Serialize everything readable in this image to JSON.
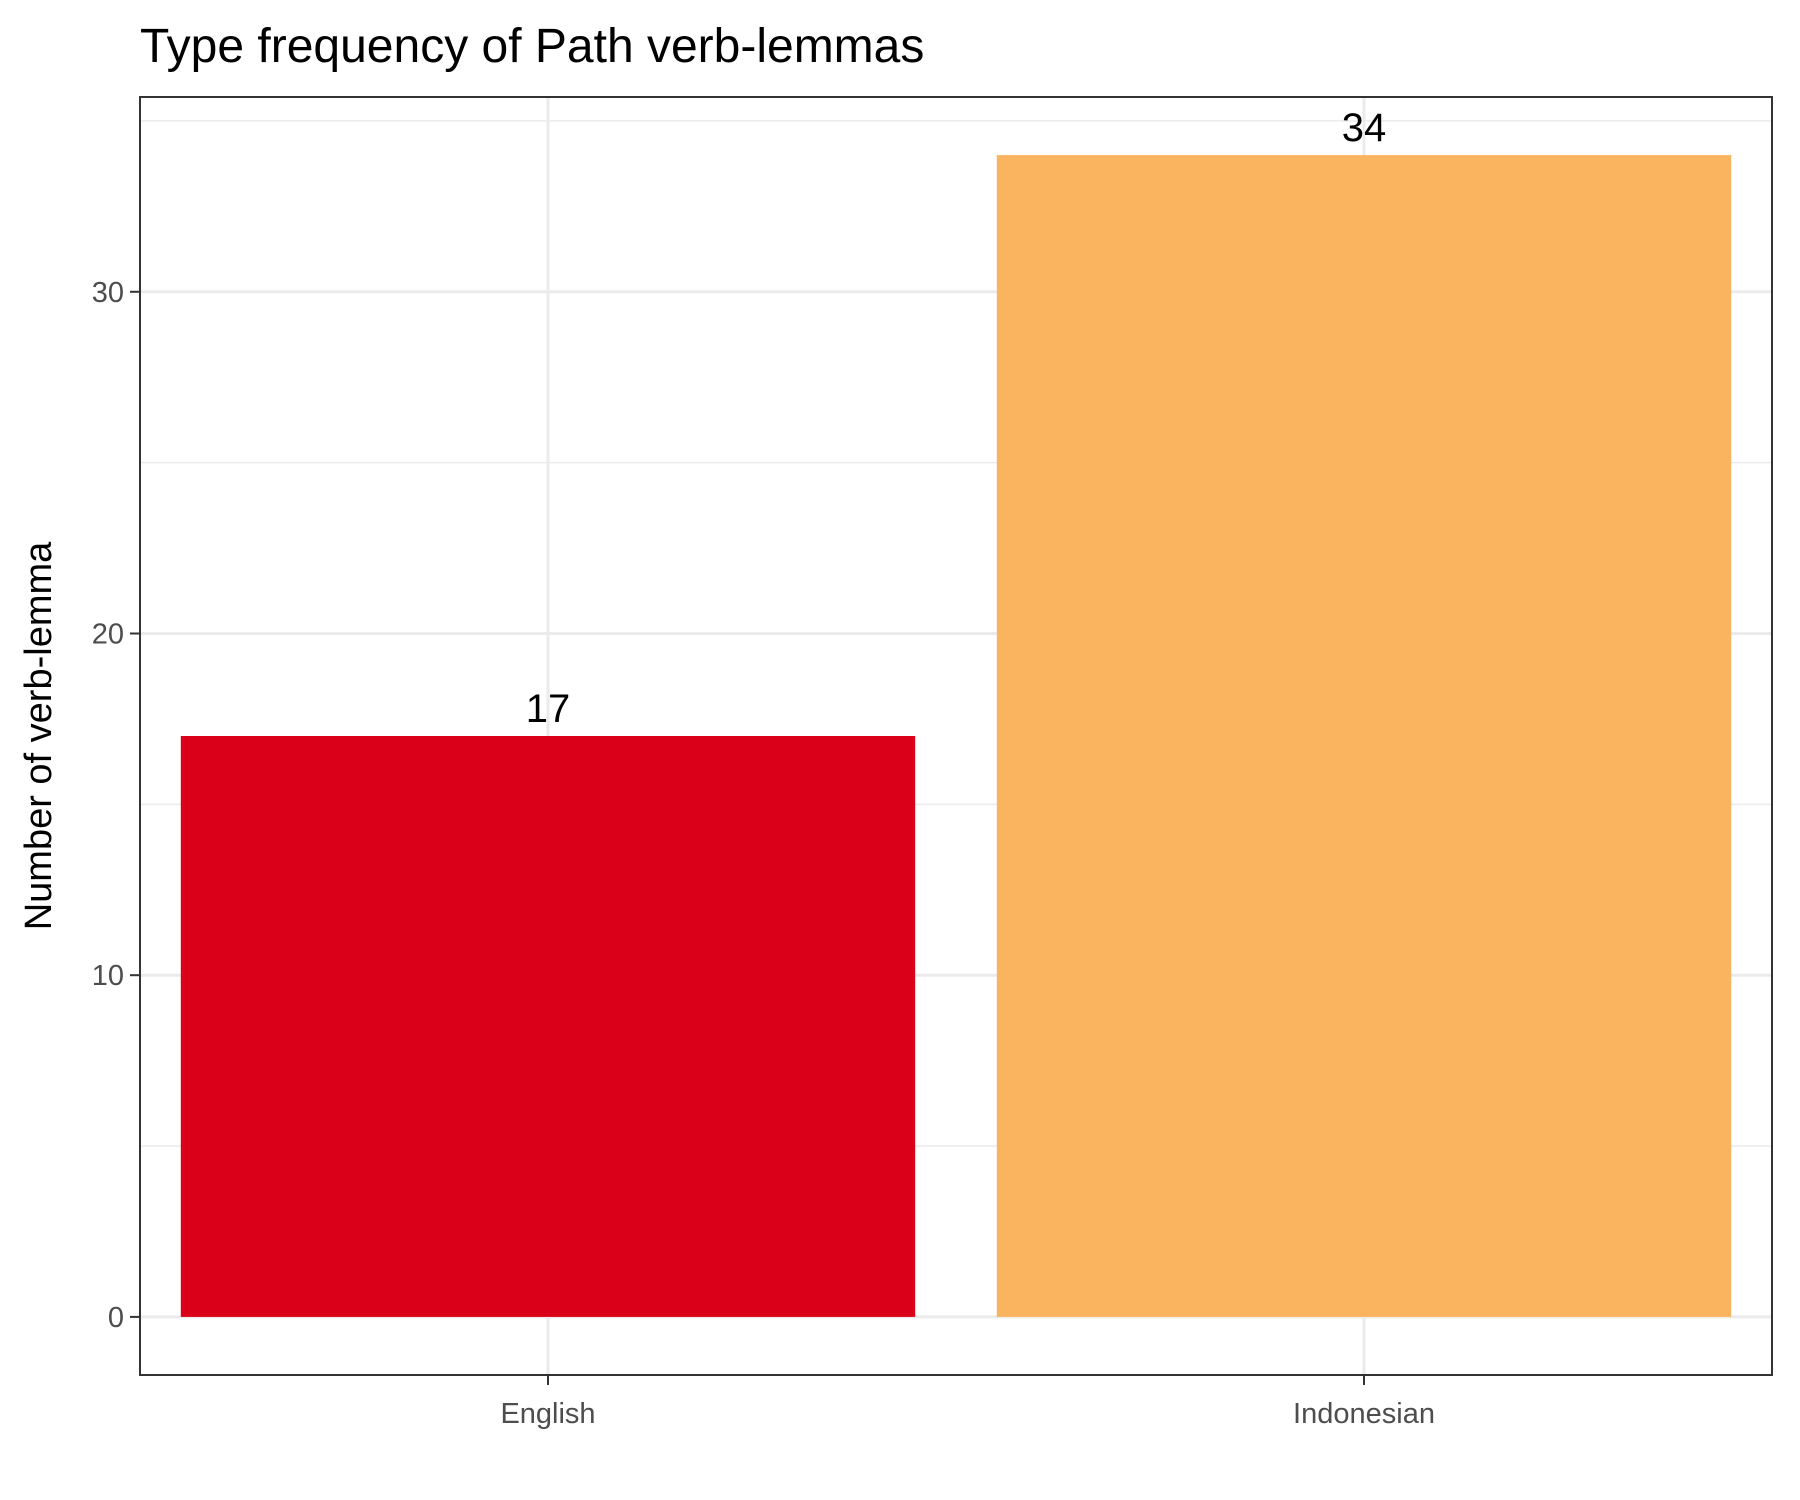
{
  "chart_data": {
    "type": "bar",
    "title": "Type frequency of Path verb-lemmas",
    "xlabel": "",
    "ylabel": "Number of verb-lemma",
    "categories": [
      "English",
      "Indonesian"
    ],
    "values": [
      17,
      34
    ],
    "data_labels": [
      "17",
      "34"
    ],
    "colors": [
      "#DA0019",
      "#FAB35F"
    ],
    "yticks": [
      0,
      10,
      20,
      30
    ],
    "ytick_labels": [
      "0",
      "10",
      "20",
      "30"
    ],
    "ylim": [
      -1.7,
      35.7
    ],
    "grid": true,
    "legend": "none"
  }
}
